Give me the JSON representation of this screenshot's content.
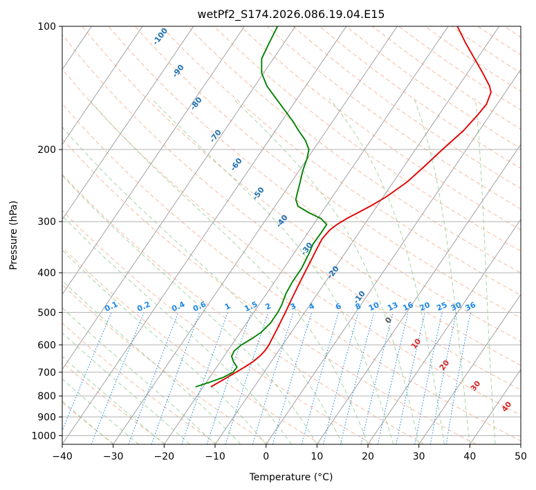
{
  "chart_data": {
    "type": "line",
    "subtype": "skew-t log-p diagram",
    "title": "wetPf2_S174.2026.086.19.04.E15",
    "xlabel": "Temperature (°C)",
    "ylabel": "Pressure (hPa)",
    "xlim": [
      -40,
      50
    ],
    "ylim": [
      1050,
      100
    ],
    "y_scale": "log",
    "x_ticks": [
      -40,
      -30,
      -20,
      -10,
      0,
      10,
      20,
      30,
      40,
      50
    ],
    "x_tick_labels": [
      "−40",
      "−30",
      "−20",
      "−10",
      "0",
      "10",
      "20",
      "30",
      "40",
      "50"
    ],
    "y_ticks": [
      100,
      200,
      300,
      400,
      500,
      600,
      700,
      800,
      900,
      1000
    ],
    "y_tick_labels": [
      "100",
      "200",
      "300",
      "400",
      "500",
      "600",
      "700",
      "800",
      "900",
      "1000"
    ],
    "grid": true,
    "skew_isotherm_values": [
      -100,
      -90,
      -80,
      -70,
      -60,
      -50,
      -40,
      -30,
      -20,
      -10,
      0,
      10,
      20,
      30,
      40
    ],
    "mixing_ratio_labels": [
      "0.1",
      "0.2",
      "0.4",
      "0.6",
      "1",
      "1.5",
      "2",
      "3",
      "4",
      "6",
      "8",
      "10",
      "13",
      "16",
      "20",
      "25",
      "30",
      "36"
    ],
    "mixing_ratio_values": [
      0.1,
      0.2,
      0.4,
      0.6,
      1,
      1.5,
      2,
      3,
      4,
      6,
      8,
      10,
      13,
      16,
      20,
      25,
      30,
      36
    ],
    "series": [
      {
        "role": "temperature",
        "color": "#e00000",
        "points": [
          {
            "p": 760,
            "t": -18.5
          },
          {
            "p": 740,
            "t": -17.5
          },
          {
            "p": 720,
            "t": -16.5
          },
          {
            "p": 700,
            "t": -15.5
          },
          {
            "p": 680,
            "t": -14.5
          },
          {
            "p": 660,
            "t": -13.6
          },
          {
            "p": 640,
            "t": -13.0
          },
          {
            "p": 620,
            "t": -12.7
          },
          {
            "p": 600,
            "t": -12.7
          },
          {
            "p": 580,
            "t": -12.9
          },
          {
            "p": 550,
            "t": -13.2
          },
          {
            "p": 500,
            "t": -13.8
          },
          {
            "p": 460,
            "t": -14.4
          },
          {
            "p": 420,
            "t": -15.0
          },
          {
            "p": 380,
            "t": -15.6
          },
          {
            "p": 350,
            "t": -16.1
          },
          {
            "p": 330,
            "t": -16.4
          },
          {
            "p": 315,
            "t": -16.1
          },
          {
            "p": 305,
            "t": -15.4
          },
          {
            "p": 295,
            "t": -14.3
          },
          {
            "p": 285,
            "t": -12.8
          },
          {
            "p": 275,
            "t": -11.3
          },
          {
            "p": 260,
            "t": -9.3
          },
          {
            "p": 240,
            "t": -7.3
          },
          {
            "p": 220,
            "t": -6.0
          },
          {
            "p": 200,
            "t": -4.7
          },
          {
            "p": 180,
            "t": -3.1
          },
          {
            "p": 165,
            "t": -2.4
          },
          {
            "p": 155,
            "t": -2.1
          },
          {
            "p": 145,
            "t": -2.8
          },
          {
            "p": 140,
            "t": -3.9
          },
          {
            "p": 130,
            "t": -7.0
          },
          {
            "p": 120,
            "t": -10.5
          },
          {
            "p": 110,
            "t": -14.3
          },
          {
            "p": 100,
            "t": -18.2
          }
        ]
      },
      {
        "role": "dewpoint",
        "color": "#008000",
        "points": [
          {
            "p": 760,
            "t": -21.5
          },
          {
            "p": 740,
            "t": -19.3
          },
          {
            "p": 720,
            "t": -17.3
          },
          {
            "p": 700,
            "t": -16.1
          },
          {
            "p": 680,
            "t": -16.0
          },
          {
            "p": 660,
            "t": -17.4
          },
          {
            "p": 640,
            "t": -18.5
          },
          {
            "p": 620,
            "t": -18.7
          },
          {
            "p": 600,
            "t": -18.1
          },
          {
            "p": 580,
            "t": -16.9
          },
          {
            "p": 560,
            "t": -15.9
          },
          {
            "p": 530,
            "t": -15.3
          },
          {
            "p": 500,
            "t": -15.3
          },
          {
            "p": 480,
            "t": -15.5
          },
          {
            "p": 450,
            "t": -16.2
          },
          {
            "p": 420,
            "t": -16.5
          },
          {
            "p": 390,
            "t": -16.5
          },
          {
            "p": 360,
            "t": -17.0
          },
          {
            "p": 340,
            "t": -17.5
          },
          {
            "p": 320,
            "t": -17.4
          },
          {
            "p": 305,
            "t": -17.4
          },
          {
            "p": 295,
            "t": -19.3
          },
          {
            "p": 285,
            "t": -22.6
          },
          {
            "p": 275,
            "t": -25.5
          },
          {
            "p": 265,
            "t": -26.8
          },
          {
            "p": 255,
            "t": -27.4
          },
          {
            "p": 240,
            "t": -28.3
          },
          {
            "p": 225,
            "t": -29.3
          },
          {
            "p": 210,
            "t": -30.1
          },
          {
            "p": 200,
            "t": -30.9
          },
          {
            "p": 190,
            "t": -32.8
          },
          {
            "p": 180,
            "t": -35.4
          },
          {
            "p": 170,
            "t": -38.0
          },
          {
            "p": 160,
            "t": -41.0
          },
          {
            "p": 150,
            "t": -44.2
          },
          {
            "p": 140,
            "t": -47.6
          },
          {
            "p": 130,
            "t": -50.4
          },
          {
            "p": 120,
            "t": -52.3
          },
          {
            "p": 110,
            "t": -52.9
          },
          {
            "p": 100,
            "t": -53.5
          }
        ]
      }
    ]
  },
  "colors": {
    "grid": "#b0b0b0",
    "isotherm": "#a0a0a0",
    "dry_adiabat": "#f7a07a",
    "moist_adiabat": "#8ccb8c",
    "mixing_ratio": "#1e88e5",
    "isotherm_label": "#1f6fb0",
    "isotherm_label_warm": "#d62728",
    "isotherm_label_zero": "#555555",
    "saturation_curve": "#c8a878"
  }
}
